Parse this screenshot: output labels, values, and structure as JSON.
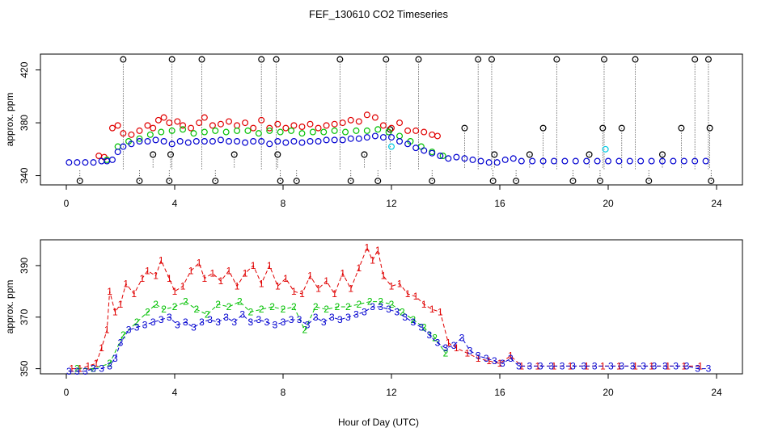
{
  "title": "FEF_130610  CO2 Timeseries",
  "xlabel": "Hour of Day (UTC)",
  "colors": {
    "black": "#000000",
    "red": "#e00000",
    "green": "#00c000",
    "blue": "#0000d0",
    "cyan": "#00c8e0"
  },
  "chart_data": [
    {
      "type": "scatter",
      "ylabel": "approx. ppm",
      "xlim": [
        0,
        24
      ],
      "ylim": [
        333,
        432
      ],
      "x_ticks": [
        "0",
        "4",
        "8",
        "12",
        "16",
        "20",
        "24"
      ],
      "y_ticks": [
        "340",
        "380",
        "420"
      ],
      "series": [
        {
          "color": "black",
          "marker": "circle",
          "x": [
            0.5,
            2.1,
            2.7,
            3.2,
            3.8,
            3.85,
            3.9,
            5.0,
            5.5,
            6.2,
            7.2,
            7.75,
            7.8,
            7.9,
            8.5,
            10.1,
            10.5,
            11.0,
            11.5,
            11.8,
            11.95,
            13.0,
            13.5,
            14.7,
            15.2,
            15.7,
            15.75,
            15.8,
            16.6,
            17.1,
            17.6,
            18.1,
            18.7,
            19.3,
            19.7,
            19.8,
            19.85,
            20.5,
            21.0,
            21.5,
            22.0,
            22.7,
            23.2,
            23.7,
            23.75,
            23.8
          ],
          "y": [
            336,
            428,
            336,
            356,
            336,
            356,
            428,
            428,
            336,
            356,
            428,
            428,
            356,
            336,
            336,
            428,
            336,
            356,
            336,
            428,
            375,
            428,
            336,
            376,
            428,
            428,
            336,
            356,
            336,
            356,
            376,
            428,
            336,
            356,
            336,
            376,
            428,
            376,
            428,
            336,
            356,
            376,
            428,
            428,
            376,
            336
          ]
        },
        {
          "color": "red",
          "marker": "circle",
          "x": [
            1.2,
            1.4,
            1.7,
            1.9,
            2.1,
            2.4,
            2.7,
            3.0,
            3.2,
            3.4,
            3.6,
            3.8,
            4.1,
            4.3,
            4.6,
            4.9,
            5.1,
            5.4,
            5.7,
            6.0,
            6.3,
            6.6,
            6.9,
            7.2,
            7.5,
            7.8,
            8.1,
            8.4,
            8.7,
            9.0,
            9.3,
            9.6,
            9.9,
            10.2,
            10.5,
            10.8,
            11.1,
            11.4,
            11.7,
            12.0,
            12.3,
            12.6,
            12.9,
            13.2,
            13.5,
            13.7
          ],
          "y": [
            355,
            354,
            376,
            378,
            372,
            371,
            374,
            378,
            376,
            382,
            384,
            380,
            381,
            378,
            376,
            380,
            384,
            378,
            379,
            381,
            378,
            380,
            376,
            382,
            376,
            379,
            376,
            378,
            377,
            379,
            376,
            378,
            379,
            380,
            382,
            381,
            386,
            384,
            378,
            376,
            380,
            374,
            374,
            373,
            371,
            370
          ]
        },
        {
          "color": "green",
          "marker": "circle",
          "x": [
            1.5,
            1.9,
            2.3,
            2.7,
            3.1,
            3.5,
            3.9,
            4.3,
            4.7,
            5.1,
            5.5,
            5.9,
            6.3,
            6.7,
            7.1,
            7.5,
            7.9,
            8.3,
            8.7,
            9.1,
            9.5,
            9.9,
            10.3,
            10.7,
            11.1,
            11.5,
            11.9,
            12.3,
            12.7,
            13.1,
            13.5,
            13.9
          ],
          "y": [
            352,
            362,
            366,
            368,
            371,
            373,
            374,
            375,
            372,
            373,
            374,
            373,
            374,
            374,
            372,
            374,
            373,
            374,
            372,
            373,
            373,
            374,
            373,
            374,
            374,
            375,
            373,
            370,
            366,
            362,
            358,
            355
          ]
        },
        {
          "color": "cyan",
          "marker": "circle",
          "x": [
            12.0,
            19.9
          ],
          "y": [
            362,
            360
          ]
        },
        {
          "color": "blue",
          "marker": "circle",
          "x": [
            0.1,
            0.4,
            0.7,
            1.0,
            1.3,
            1.5,
            1.7,
            1.9,
            2.1,
            2.4,
            2.7,
            3.0,
            3.3,
            3.6,
            3.9,
            4.2,
            4.5,
            4.8,
            5.1,
            5.4,
            5.7,
            6.0,
            6.3,
            6.6,
            6.9,
            7.2,
            7.5,
            7.8,
            8.1,
            8.4,
            8.7,
            9.0,
            9.3,
            9.6,
            9.9,
            10.2,
            10.5,
            10.8,
            11.1,
            11.4,
            11.7,
            12.0,
            12.3,
            12.6,
            12.9,
            13.2,
            13.5,
            13.8,
            14.1,
            14.4,
            14.7,
            15.0,
            15.3,
            15.6,
            15.9,
            16.2,
            16.5,
            16.8,
            17.2,
            17.6,
            18.0,
            18.4,
            18.8,
            19.2,
            19.6,
            20.0,
            20.4,
            20.8,
            21.2,
            21.6,
            22.0,
            22.4,
            22.8,
            23.2,
            23.6
          ],
          "y": [
            350,
            350,
            350,
            350,
            351,
            351,
            352,
            358,
            362,
            364,
            366,
            366,
            367,
            366,
            364,
            366,
            365,
            366,
            366,
            366,
            367,
            366,
            366,
            365,
            366,
            366,
            364,
            366,
            365,
            366,
            365,
            366,
            366,
            367,
            367,
            367,
            368,
            368,
            369,
            370,
            369,
            369,
            366,
            364,
            361,
            359,
            357,
            355,
            353,
            354,
            353,
            352,
            351,
            350,
            350,
            352,
            353,
            351,
            351,
            351,
            351,
            351,
            351,
            351,
            351,
            351,
            351,
            351,
            351,
            351,
            351,
            351,
            351,
            351,
            351
          ]
        }
      ]
    },
    {
      "type": "line",
      "ylabel": "approx. ppm",
      "xlim": [
        0,
        24
      ],
      "ylim": [
        348,
        400
      ],
      "x_ticks": [
        "0",
        "4",
        "8",
        "12",
        "16",
        "20",
        "24"
      ],
      "y_ticks": [
        "350",
        "370",
        "390"
      ],
      "series": [
        {
          "label": "1",
          "color": "red",
          "x": [
            0.2,
            0.5,
            0.8,
            1.1,
            1.3,
            1.5,
            1.6,
            1.8,
            2.0,
            2.2,
            2.5,
            2.8,
            3.0,
            3.3,
            3.5,
            3.8,
            4.0,
            4.3,
            4.6,
            4.9,
            5.1,
            5.4,
            5.7,
            6.0,
            6.3,
            6.6,
            6.9,
            7.2,
            7.5,
            7.8,
            8.1,
            8.4,
            8.7,
            9.0,
            9.3,
            9.6,
            9.9,
            10.2,
            10.5,
            10.8,
            11.1,
            11.3,
            11.5,
            11.7,
            12.0,
            12.3,
            12.6,
            12.9,
            13.2,
            13.5,
            13.8,
            14.1,
            14.4,
            14.8,
            15.2,
            15.6,
            16.0,
            16.4,
            16.8,
            17.4,
            18.0,
            18.6,
            19.2,
            19.8,
            20.4,
            21.0,
            21.6,
            22.2,
            22.8,
            23.4
          ],
          "y": [
            350,
            350,
            351,
            352,
            358,
            365,
            380,
            372,
            375,
            383,
            379,
            385,
            388,
            386,
            392,
            385,
            380,
            382,
            388,
            391,
            385,
            387,
            384,
            388,
            382,
            387,
            390,
            383,
            390,
            382,
            385,
            380,
            379,
            386,
            381,
            384,
            379,
            387,
            381,
            389,
            397,
            392,
            396,
            386,
            382,
            383,
            379,
            378,
            375,
            373,
            372,
            360,
            358,
            356,
            354,
            353,
            352,
            355,
            351,
            351,
            351,
            351,
            351,
            351,
            351,
            351,
            351,
            351,
            351,
            351
          ]
        },
        {
          "label": "2",
          "color": "green",
          "x": [
            0.4,
            1.0,
            1.6,
            2.1,
            2.6,
            3.0,
            3.3,
            3.6,
            4.0,
            4.4,
            4.8,
            5.2,
            5.6,
            6.0,
            6.4,
            6.8,
            7.2,
            7.6,
            8.0,
            8.4,
            8.8,
            9.2,
            9.6,
            10.0,
            10.4,
            10.8,
            11.2,
            11.6,
            12.0,
            12.4,
            12.8,
            13.2,
            13.6,
            14.0
          ],
          "y": [
            350,
            350,
            352,
            363,
            368,
            372,
            375,
            373,
            374,
            376,
            373,
            371,
            375,
            374,
            376,
            372,
            373,
            374,
            373,
            374,
            365,
            374,
            373,
            374,
            374,
            375,
            376,
            376,
            375,
            372,
            369,
            366,
            362,
            356
          ]
        },
        {
          "label": "3",
          "color": "blue",
          "x": [
            0.1,
            0.4,
            0.7,
            1.0,
            1.3,
            1.6,
            1.8,
            2.0,
            2.3,
            2.6,
            2.9,
            3.2,
            3.5,
            3.8,
            4.1,
            4.4,
            4.7,
            5.0,
            5.3,
            5.6,
            5.9,
            6.2,
            6.5,
            6.8,
            7.1,
            7.4,
            7.7,
            8.0,
            8.3,
            8.6,
            8.9,
            9.2,
            9.5,
            9.8,
            10.1,
            10.4,
            10.7,
            11.0,
            11.3,
            11.6,
            11.9,
            12.2,
            12.5,
            12.8,
            13.1,
            13.4,
            13.7,
            14.0,
            14.3,
            14.6,
            14.9,
            15.2,
            15.5,
            15.8,
            16.1,
            16.4,
            16.7,
            17.1,
            17.5,
            17.9,
            18.3,
            18.7,
            19.1,
            19.5,
            20.1,
            20.5,
            20.9,
            21.3,
            21.7,
            22.1,
            22.5,
            22.9,
            23.3,
            23.7
          ],
          "y": [
            349,
            349,
            349,
            350,
            350,
            351,
            354,
            360,
            365,
            366,
            367,
            368,
            369,
            370,
            367,
            368,
            366,
            368,
            369,
            368,
            370,
            368,
            371,
            368,
            369,
            368,
            367,
            368,
            369,
            369,
            367,
            370,
            368,
            370,
            369,
            370,
            371,
            372,
            374,
            374,
            373,
            372,
            370,
            368,
            366,
            363,
            360,
            358,
            359,
            362,
            357,
            355,
            354,
            353,
            352,
            354,
            351,
            351,
            351,
            351,
            351,
            351,
            351,
            351,
            351,
            351,
            351,
            351,
            351,
            351,
            351,
            351,
            350,
            350
          ]
        }
      ]
    }
  ]
}
